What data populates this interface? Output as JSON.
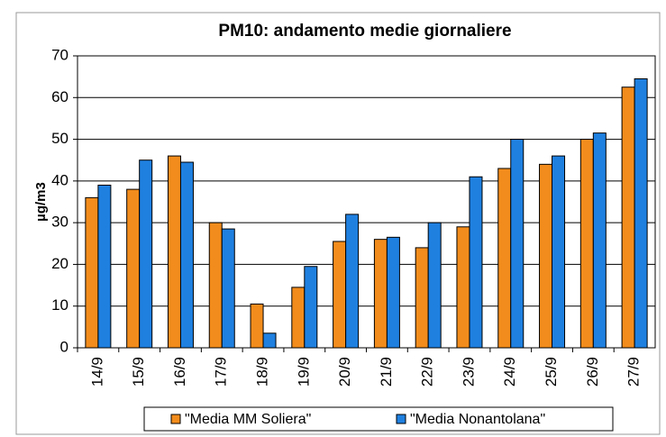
{
  "chart_data": {
    "type": "bar",
    "title": "PM10: andamento medie giornaliere",
    "y_label": "µg/m3",
    "categories": [
      "14/9",
      "15/9",
      "16/9",
      "17/9",
      "18/9",
      "19/9",
      "20/9",
      "21/9",
      "22/9",
      "23/9",
      "24/9",
      "25/9",
      "26/9",
      "27/9"
    ],
    "series": [
      {
        "name": "\"Media MM Soliera\"",
        "color": "#f28c1c",
        "values": [
          36,
          38,
          46,
          30,
          10.5,
          14.5,
          25.5,
          26,
          24,
          29,
          43,
          44,
          50,
          62.5
        ]
      },
      {
        "name": "\"Media Nonantolana\"",
        "color": "#1f80e0",
        "values": [
          39,
          45,
          44.5,
          28.5,
          3.5,
          19.5,
          32,
          26.5,
          30,
          41,
          50,
          46,
          51.5,
          64.5
        ]
      }
    ],
    "ylim": [
      0,
      70
    ],
    "yticks": [
      0,
      10,
      20,
      30,
      40,
      50,
      60,
      70
    ],
    "grid": true,
    "legend": "bottom"
  }
}
